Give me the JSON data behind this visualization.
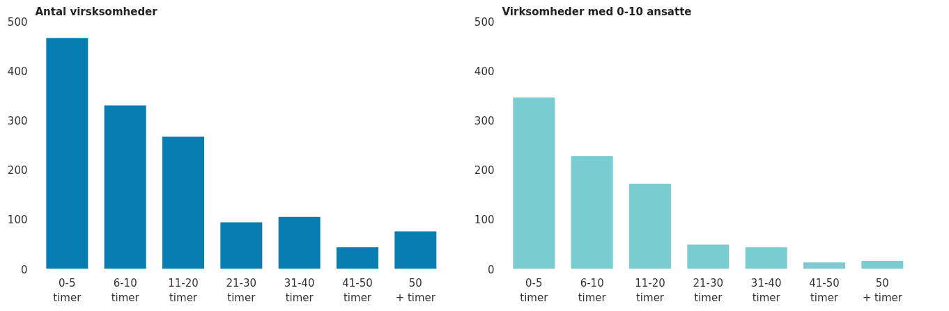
{
  "chart_data": [
    {
      "type": "bar",
      "title": "Antal virsksomheder",
      "categories": [
        "0-5\ntimer",
        "6-10\ntimer",
        "11-20\ntimer",
        "21-30\ntimer",
        "31-40\ntimer",
        "41-50\ntimer",
        "50\n+ timer"
      ],
      "series": [
        {
          "color": "#087db1",
          "values": [
            466,
            330,
            267,
            94,
            105,
            44,
            76
          ]
        }
      ],
      "ylim": [
        0,
        500
      ],
      "yticks": [
        0,
        100,
        200,
        300,
        400,
        500
      ],
      "grid": false
    },
    {
      "type": "bar",
      "title": "Virksomheder med 0-10 ansatte",
      "categories": [
        "0-5\ntimer",
        "6-10\ntimer",
        "11-20\ntimer",
        "21-30\ntimer",
        "31-40\ntimer",
        "41-50\ntimer",
        "50\n+ timer"
      ],
      "series": [
        {
          "color": "#79cdd0",
          "values": [
            346,
            228,
            172,
            49,
            44,
            13,
            16
          ]
        }
      ],
      "ylim": [
        0,
        500
      ],
      "yticks": [
        0,
        100,
        200,
        300,
        400,
        500
      ],
      "grid": false
    }
  ]
}
